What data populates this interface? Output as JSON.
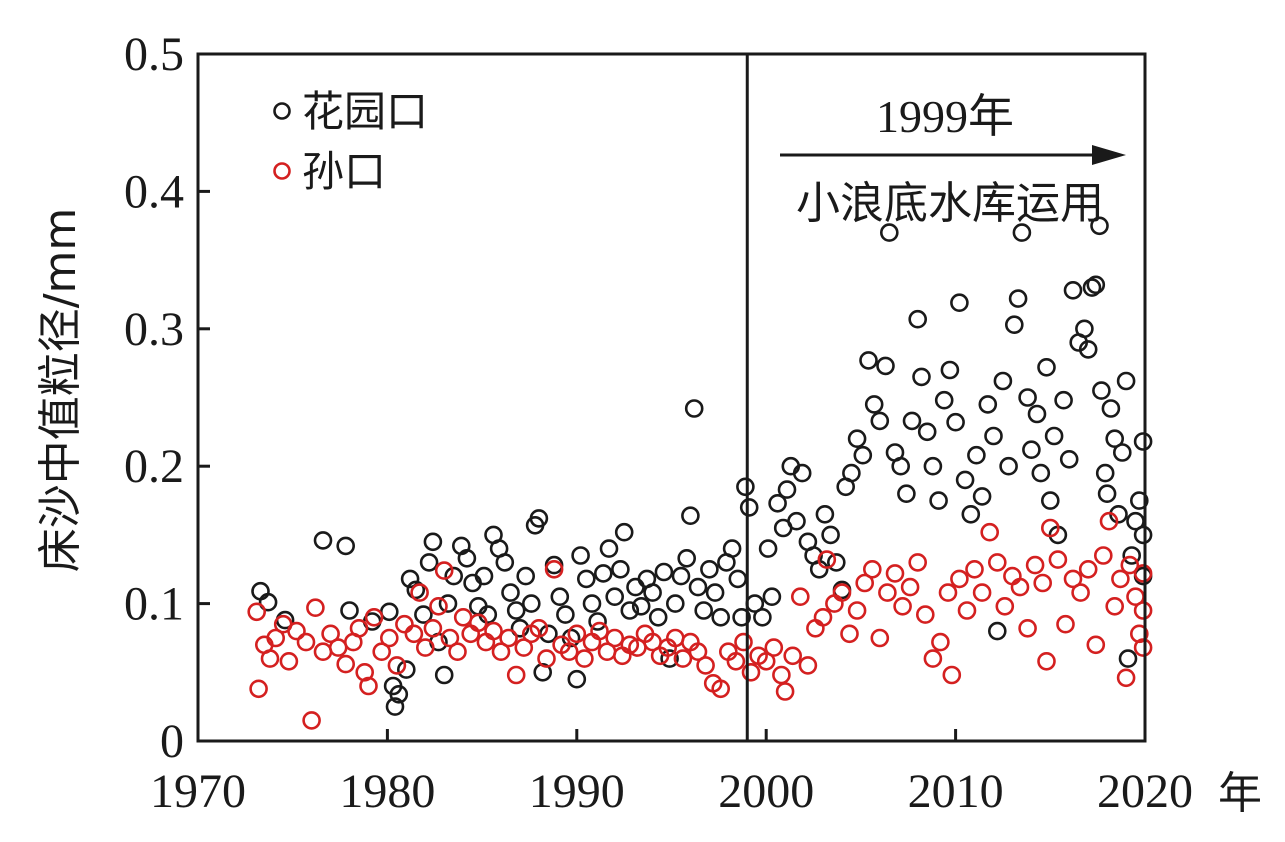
{
  "chart_data": {
    "type": "scatter",
    "title": "",
    "xlabel": "年",
    "ylabel": "床沙中值粒径/mm",
    "xlim": [
      1970,
      2020
    ],
    "ylim": [
      0,
      0.5
    ],
    "xticks": [
      1970,
      1980,
      1990,
      2000,
      2010,
      2020
    ],
    "xtick_labels": [
      "1970",
      "1980",
      "1990",
      "2000",
      "2010",
      "2020"
    ],
    "yticks": [
      0,
      0.1,
      0.2,
      0.3,
      0.4,
      0.5
    ],
    "ytick_labels": [
      "0",
      "0.1",
      "0.2",
      "0.3",
      "0.4",
      "0.5"
    ],
    "grid": false,
    "legend_position": "top-left",
    "marker": "hollow-circle",
    "series": [
      {
        "name": "花园口",
        "color": "#1a1a1a",
        "points": [
          [
            1973.3,
            0.109
          ],
          [
            1973.7,
            0.101
          ],
          [
            1974.6,
            0.088
          ],
          [
            1976.6,
            0.146
          ],
          [
            1977.8,
            0.142
          ],
          [
            1978.0,
            0.095
          ],
          [
            1979.2,
            0.087
          ],
          [
            1980.1,
            0.094
          ],
          [
            1980.3,
            0.04
          ],
          [
            1980.4,
            0.025
          ],
          [
            1980.6,
            0.034
          ],
          [
            1981.0,
            0.052
          ],
          [
            1981.2,
            0.118
          ],
          [
            1981.5,
            0.11
          ],
          [
            1981.9,
            0.092
          ],
          [
            1982.2,
            0.13
          ],
          [
            1982.4,
            0.145
          ],
          [
            1982.7,
            0.072
          ],
          [
            1983.0,
            0.048
          ],
          [
            1983.2,
            0.1
          ],
          [
            1983.5,
            0.12
          ],
          [
            1983.9,
            0.142
          ],
          [
            1984.2,
            0.133
          ],
          [
            1984.5,
            0.115
          ],
          [
            1984.8,
            0.098
          ],
          [
            1985.1,
            0.12
          ],
          [
            1985.3,
            0.092
          ],
          [
            1985.6,
            0.15
          ],
          [
            1985.9,
            0.14
          ],
          [
            1986.2,
            0.13
          ],
          [
            1986.5,
            0.108
          ],
          [
            1986.8,
            0.095
          ],
          [
            1987.0,
            0.082
          ],
          [
            1987.3,
            0.12
          ],
          [
            1987.6,
            0.1
          ],
          [
            1987.8,
            0.157
          ],
          [
            1988.0,
            0.162
          ],
          [
            1988.2,
            0.05
          ],
          [
            1988.5,
            0.078
          ],
          [
            1988.8,
            0.128
          ],
          [
            1989.1,
            0.105
          ],
          [
            1989.4,
            0.092
          ],
          [
            1989.7,
            0.075
          ],
          [
            1990.0,
            0.045
          ],
          [
            1990.2,
            0.135
          ],
          [
            1990.5,
            0.118
          ],
          [
            1990.8,
            0.1
          ],
          [
            1991.1,
            0.087
          ],
          [
            1991.4,
            0.122
          ],
          [
            1991.7,
            0.14
          ],
          [
            1992.0,
            0.105
          ],
          [
            1992.3,
            0.125
          ],
          [
            1992.5,
            0.152
          ],
          [
            1992.8,
            0.095
          ],
          [
            1993.1,
            0.112
          ],
          [
            1993.4,
            0.098
          ],
          [
            1993.7,
            0.118
          ],
          [
            1994.0,
            0.108
          ],
          [
            1994.3,
            0.09
          ],
          [
            1994.6,
            0.123
          ],
          [
            1994.9,
            0.06
          ],
          [
            1995.2,
            0.1
          ],
          [
            1995.5,
            0.12
          ],
          [
            1995.8,
            0.133
          ],
          [
            1996.0,
            0.164
          ],
          [
            1996.2,
            0.242
          ],
          [
            1996.4,
            0.112
          ],
          [
            1996.7,
            0.095
          ],
          [
            1997.0,
            0.125
          ],
          [
            1997.3,
            0.108
          ],
          [
            1997.6,
            0.09
          ],
          [
            1997.9,
            0.13
          ],
          [
            1998.2,
            0.14
          ],
          [
            1998.5,
            0.118
          ],
          [
            1998.7,
            0.09
          ],
          [
            1998.9,
            0.185
          ],
          [
            1999.1,
            0.17
          ],
          [
            1999.4,
            0.1
          ],
          [
            1999.8,
            0.09
          ],
          [
            2000.1,
            0.14
          ],
          [
            2000.3,
            0.105
          ],
          [
            2000.6,
            0.173
          ],
          [
            2000.9,
            0.155
          ],
          [
            2001.1,
            0.183
          ],
          [
            2001.3,
            0.2
          ],
          [
            2001.6,
            0.16
          ],
          [
            2001.9,
            0.195
          ],
          [
            2002.2,
            0.145
          ],
          [
            2002.5,
            0.135
          ],
          [
            2002.8,
            0.125
          ],
          [
            2003.1,
            0.165
          ],
          [
            2003.4,
            0.15
          ],
          [
            2003.7,
            0.13
          ],
          [
            2004.0,
            0.11
          ],
          [
            2004.2,
            0.185
          ],
          [
            2004.5,
            0.195
          ],
          [
            2004.8,
            0.22
          ],
          [
            2005.1,
            0.208
          ],
          [
            2005.4,
            0.277
          ],
          [
            2005.7,
            0.245
          ],
          [
            2006.0,
            0.233
          ],
          [
            2006.3,
            0.273
          ],
          [
            2006.5,
            0.37
          ],
          [
            2006.8,
            0.21
          ],
          [
            2007.1,
            0.2
          ],
          [
            2007.4,
            0.18
          ],
          [
            2007.7,
            0.233
          ],
          [
            2008.0,
            0.307
          ],
          [
            2008.2,
            0.265
          ],
          [
            2008.5,
            0.225
          ],
          [
            2008.8,
            0.2
          ],
          [
            2009.1,
            0.175
          ],
          [
            2009.4,
            0.248
          ],
          [
            2009.7,
            0.27
          ],
          [
            2010.0,
            0.232
          ],
          [
            2010.2,
            0.319
          ],
          [
            2010.5,
            0.19
          ],
          [
            2010.8,
            0.165
          ],
          [
            2011.1,
            0.208
          ],
          [
            2011.4,
            0.178
          ],
          [
            2011.7,
            0.245
          ],
          [
            2012.0,
            0.222
          ],
          [
            2012.2,
            0.08
          ],
          [
            2012.5,
            0.262
          ],
          [
            2012.8,
            0.2
          ],
          [
            2013.1,
            0.303
          ],
          [
            2013.3,
            0.322
          ],
          [
            2013.5,
            0.37
          ],
          [
            2013.8,
            0.25
          ],
          [
            2014.0,
            0.212
          ],
          [
            2014.3,
            0.238
          ],
          [
            2014.5,
            0.195
          ],
          [
            2014.8,
            0.272
          ],
          [
            2015.0,
            0.175
          ],
          [
            2015.2,
            0.222
          ],
          [
            2015.4,
            0.15
          ],
          [
            2015.7,
            0.248
          ],
          [
            2016.0,
            0.205
          ],
          [
            2016.2,
            0.328
          ],
          [
            2016.5,
            0.29
          ],
          [
            2016.8,
            0.3
          ],
          [
            2017.0,
            0.285
          ],
          [
            2017.2,
            0.33
          ],
          [
            2017.4,
            0.332
          ],
          [
            2017.6,
            0.375
          ],
          [
            2017.7,
            0.255
          ],
          [
            2017.9,
            0.195
          ],
          [
            2018.0,
            0.18
          ],
          [
            2018.2,
            0.242
          ],
          [
            2018.4,
            0.22
          ],
          [
            2018.6,
            0.165
          ],
          [
            2018.8,
            0.21
          ],
          [
            2019.0,
            0.262
          ],
          [
            2019.1,
            0.06
          ],
          [
            2019.3,
            0.135
          ],
          [
            2019.5,
            0.16
          ],
          [
            2019.7,
            0.175
          ],
          [
            2019.9,
            0.218
          ],
          [
            2019.9,
            0.15
          ],
          [
            2019.9,
            0.12
          ]
        ]
      },
      {
        "name": "孙口",
        "color": "#d42020",
        "points": [
          [
            1973.1,
            0.094
          ],
          [
            1973.2,
            0.038
          ],
          [
            1973.5,
            0.07
          ],
          [
            1973.8,
            0.06
          ],
          [
            1974.1,
            0.075
          ],
          [
            1974.5,
            0.085
          ],
          [
            1974.8,
            0.058
          ],
          [
            1975.2,
            0.08
          ],
          [
            1975.7,
            0.072
          ],
          [
            1976.0,
            0.015
          ],
          [
            1976.2,
            0.097
          ],
          [
            1976.6,
            0.065
          ],
          [
            1977.0,
            0.078
          ],
          [
            1977.4,
            0.068
          ],
          [
            1977.8,
            0.056
          ],
          [
            1978.2,
            0.072
          ],
          [
            1978.5,
            0.082
          ],
          [
            1978.8,
            0.05
          ],
          [
            1979.0,
            0.04
          ],
          [
            1979.3,
            0.09
          ],
          [
            1979.7,
            0.065
          ],
          [
            1980.1,
            0.075
          ],
          [
            1980.5,
            0.055
          ],
          [
            1980.9,
            0.085
          ],
          [
            1981.4,
            0.078
          ],
          [
            1981.7,
            0.108
          ],
          [
            1982.0,
            0.068
          ],
          [
            1982.4,
            0.082
          ],
          [
            1982.7,
            0.098
          ],
          [
            1983.0,
            0.124
          ],
          [
            1983.3,
            0.075
          ],
          [
            1983.7,
            0.065
          ],
          [
            1984.0,
            0.09
          ],
          [
            1984.4,
            0.078
          ],
          [
            1984.8,
            0.086
          ],
          [
            1985.2,
            0.072
          ],
          [
            1985.6,
            0.08
          ],
          [
            1986.0,
            0.065
          ],
          [
            1986.4,
            0.075
          ],
          [
            1986.8,
            0.048
          ],
          [
            1987.2,
            0.068
          ],
          [
            1987.6,
            0.078
          ],
          [
            1988.0,
            0.082
          ],
          [
            1988.4,
            0.06
          ],
          [
            1988.8,
            0.125
          ],
          [
            1989.2,
            0.07
          ],
          [
            1989.6,
            0.065
          ],
          [
            1990.0,
            0.078
          ],
          [
            1990.4,
            0.06
          ],
          [
            1990.8,
            0.072
          ],
          [
            1991.2,
            0.08
          ],
          [
            1991.6,
            0.065
          ],
          [
            1992.0,
            0.075
          ],
          [
            1992.4,
            0.062
          ],
          [
            1992.8,
            0.07
          ],
          [
            1993.2,
            0.068
          ],
          [
            1993.6,
            0.078
          ],
          [
            1994.0,
            0.072
          ],
          [
            1994.4,
            0.062
          ],
          [
            1994.8,
            0.068
          ],
          [
            1995.2,
            0.075
          ],
          [
            1995.6,
            0.06
          ],
          [
            1996.0,
            0.072
          ],
          [
            1996.4,
            0.065
          ],
          [
            1996.8,
            0.055
          ],
          [
            1997.2,
            0.042
          ],
          [
            1997.6,
            0.038
          ],
          [
            1998.0,
            0.065
          ],
          [
            1998.4,
            0.058
          ],
          [
            1998.8,
            0.072
          ],
          [
            1999.2,
            0.05
          ],
          [
            1999.6,
            0.062
          ],
          [
            2000.0,
            0.058
          ],
          [
            2000.4,
            0.068
          ],
          [
            2000.8,
            0.048
          ],
          [
            2001.0,
            0.036
          ],
          [
            2001.4,
            0.062
          ],
          [
            2001.8,
            0.105
          ],
          [
            2002.2,
            0.055
          ],
          [
            2002.6,
            0.082
          ],
          [
            2003.0,
            0.09
          ],
          [
            2003.2,
            0.132
          ],
          [
            2003.6,
            0.1
          ],
          [
            2004.0,
            0.108
          ],
          [
            2004.4,
            0.078
          ],
          [
            2004.8,
            0.095
          ],
          [
            2005.2,
            0.115
          ],
          [
            2005.6,
            0.125
          ],
          [
            2006.0,
            0.075
          ],
          [
            2006.4,
            0.108
          ],
          [
            2006.8,
            0.122
          ],
          [
            2007.2,
            0.098
          ],
          [
            2007.6,
            0.112
          ],
          [
            2008.0,
            0.13
          ],
          [
            2008.4,
            0.092
          ],
          [
            2008.8,
            0.06
          ],
          [
            2009.2,
            0.072
          ],
          [
            2009.6,
            0.108
          ],
          [
            2009.8,
            0.048
          ],
          [
            2010.2,
            0.118
          ],
          [
            2010.6,
            0.095
          ],
          [
            2011.0,
            0.125
          ],
          [
            2011.4,
            0.108
          ],
          [
            2011.8,
            0.152
          ],
          [
            2012.2,
            0.13
          ],
          [
            2012.6,
            0.098
          ],
          [
            2013.0,
            0.12
          ],
          [
            2013.4,
            0.112
          ],
          [
            2013.8,
            0.082
          ],
          [
            2014.2,
            0.128
          ],
          [
            2014.6,
            0.115
          ],
          [
            2014.8,
            0.058
          ],
          [
            2015.0,
            0.155
          ],
          [
            2015.4,
            0.132
          ],
          [
            2015.8,
            0.085
          ],
          [
            2016.2,
            0.118
          ],
          [
            2016.6,
            0.108
          ],
          [
            2017.0,
            0.125
          ],
          [
            2017.4,
            0.07
          ],
          [
            2017.8,
            0.135
          ],
          [
            2018.1,
            0.16
          ],
          [
            2018.4,
            0.098
          ],
          [
            2018.7,
            0.118
          ],
          [
            2019.0,
            0.046
          ],
          [
            2019.2,
            0.128
          ],
          [
            2019.5,
            0.105
          ],
          [
            2019.7,
            0.078
          ],
          [
            2019.9,
            0.122
          ],
          [
            2019.9,
            0.095
          ],
          [
            2019.9,
            0.068
          ]
        ]
      }
    ],
    "annotations": {
      "divider_year": 1999,
      "event_year_label": "1999年",
      "event_text": "小浪底水库运用"
    }
  }
}
